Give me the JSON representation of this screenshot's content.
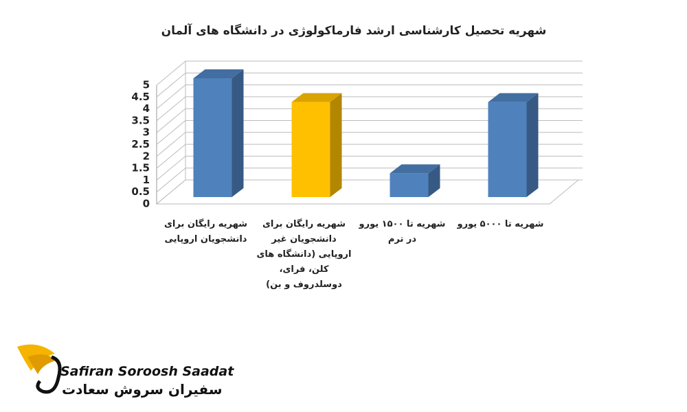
{
  "chart_data": {
    "type": "bar",
    "title": "شهریه تحصیل کارشناسی ارشد فارماکولوژی در دانشگاه های آلمان",
    "categories": [
      "شهریه رایگان برای دانشجویان اروپایی",
      "شهریه رایگان برای دانشجویان غیر اروپایی (دانشگاه های کلن، فرای، دوسلدروف و بن)",
      "شهریه تا ۱۵۰۰ یورو در ترم",
      "شهریه تا ۵۰۰۰ یورو"
    ],
    "values": [
      5,
      4,
      1,
      4
    ],
    "colors": [
      "#4f81bd",
      "#ffc000",
      "#4f81bd",
      "#4f81bd"
    ],
    "ylim": [
      0,
      5
    ],
    "yticks": [
      0,
      0.5,
      1,
      1.5,
      2,
      2.5,
      3,
      3.5,
      4,
      4.5,
      5
    ],
    "grid": true
  },
  "logo": {
    "latin": "Safiran Soroosh Saadat",
    "persian": "سفیران سروش سعادت"
  }
}
